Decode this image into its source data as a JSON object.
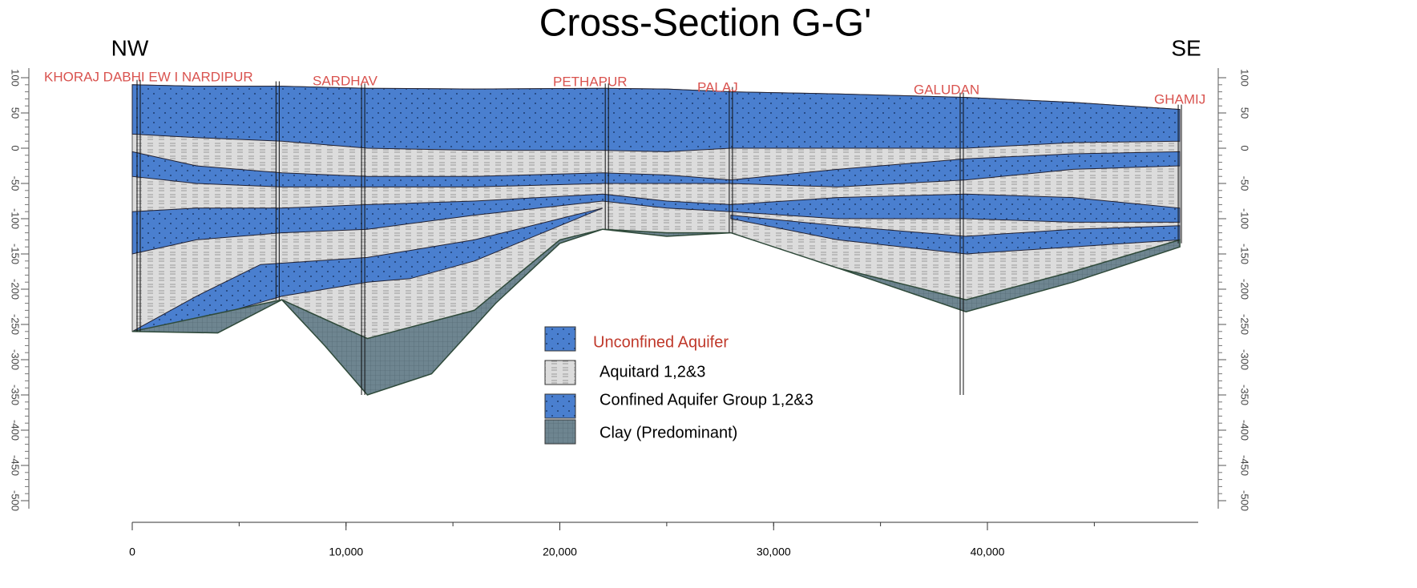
{
  "title": "Cross-Section G-G'",
  "directions": {
    "left": "NW",
    "right": "SE"
  },
  "wells": [
    "KHORAJ DABHI EW I NARDIPUR",
    "SARDHAV",
    "PETHAPUR",
    "PALAJ",
    "GALUDAN",
    "GHAMIJ"
  ],
  "legend": [
    {
      "label": "Unconfined Aquifer",
      "color": "#4a7fcf"
    },
    {
      "label": "Aquitard 1,2&3",
      "color": "#dcdcdc"
    },
    {
      "label": "Confined Aquifer Group 1,2&3",
      "color": "#4a7fcf"
    },
    {
      "label": "Clay (Predominant)",
      "color": "#6e8590"
    }
  ],
  "y_axis": {
    "lim": [
      100,
      -500
    ],
    "ticks": [
      100,
      50,
      0,
      -50,
      -100,
      -150,
      -200,
      -250,
      -300,
      -350,
      -400,
      -450,
      -500
    ]
  },
  "x_axis": {
    "lim": [
      0,
      49000
    ],
    "ticks": [
      0,
      {
        "value": 10000,
        "label": "10,000"
      },
      {
        "value": 20000,
        "label": "20,000"
      },
      {
        "value": 30000,
        "label": "30,000"
      },
      {
        "value": 40000,
        "label": "40,000"
      }
    ]
  }
}
